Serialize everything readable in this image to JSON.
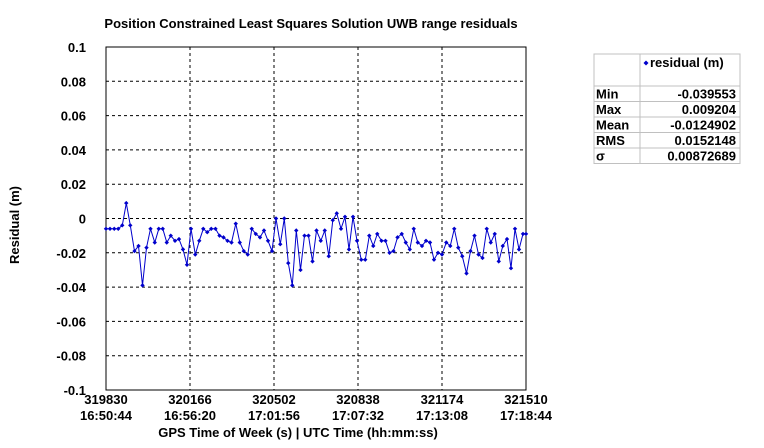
{
  "chart_data": {
    "type": "line",
    "title": "Position Constrained Least Squares Solution UWB range residuals",
    "xlabel": "GPS Time of Week (s) | UTC Time (hh:mm:ss)",
    "ylabel": "Residual (m)",
    "xlim": [
      319830,
      321510
    ],
    "ylim": [
      -0.1,
      0.1
    ],
    "grid": true,
    "legend_position": "right",
    "y_ticks": [
      "0.1",
      "0.08",
      "0.06",
      "0.04",
      "0.02",
      "0",
      "-0.02",
      "-0.04",
      "-0.06",
      "-0.08",
      "-0.1"
    ],
    "x_ticks": [
      {
        "gps": "319830",
        "utc": "16:50:44"
      },
      {
        "gps": "320166",
        "utc": "16:56:20"
      },
      {
        "gps": "320502",
        "utc": "17:01:56"
      },
      {
        "gps": "320838",
        "utc": "17:07:32"
      },
      {
        "gps": "321174",
        "utc": "17:13:08"
      },
      {
        "gps": "321510",
        "utc": "17:18:44"
      }
    ],
    "series": [
      {
        "name": "residual (m)",
        "color": "#0000cc",
        "marker": "diamond",
        "x": [
          319830,
          319846,
          319863,
          319879,
          319895,
          319911,
          319927,
          319944,
          319960,
          319976,
          319992,
          320008,
          320025,
          320041,
          320057,
          320073,
          320089,
          320106,
          320122,
          320138,
          320154,
          320170,
          320187,
          320203,
          320219,
          320235,
          320251,
          320268,
          320284,
          320300,
          320316,
          320332,
          320349,
          320365,
          320381,
          320397,
          320413,
          320429,
          320446,
          320462,
          320478,
          320494,
          320510,
          320527,
          320543,
          320559,
          320575,
          320591,
          320608,
          320624,
          320640,
          320656,
          320672,
          320689,
          320705,
          320721,
          320737,
          320753,
          320770,
          320786,
          320802,
          320818,
          320834,
          320851,
          320867,
          320883,
          320899,
          320915,
          320932,
          320948,
          320964,
          320980,
          320996,
          321013,
          321029,
          321045,
          321061,
          321077,
          321094,
          321110,
          321126,
          321142,
          321158,
          321174,
          321191,
          321207,
          321223,
          321239,
          321255,
          321272,
          321288,
          321304,
          321320,
          321336,
          321353,
          321369,
          321385,
          321401,
          321417,
          321434,
          321450,
          321466,
          321482,
          321498,
          321510
        ],
        "y": [
          -0.006,
          -0.006,
          -0.006,
          -0.006,
          -0.004,
          0.009,
          -0.004,
          -0.019,
          -0.016,
          -0.039,
          -0.017,
          -0.006,
          -0.014,
          -0.006,
          -0.006,
          -0.014,
          -0.01,
          -0.013,
          -0.012,
          -0.018,
          -0.027,
          -0.006,
          -0.021,
          -0.013,
          -0.006,
          -0.008,
          -0.006,
          -0.006,
          -0.01,
          -0.011,
          -0.013,
          -0.014,
          -0.003,
          -0.014,
          -0.019,
          -0.021,
          -0.006,
          -0.009,
          -0.011,
          -0.007,
          -0.013,
          -0.019,
          0.0,
          -0.015,
          0.0,
          -0.026,
          -0.039,
          -0.007,
          -0.03,
          -0.01,
          -0.01,
          -0.025,
          -0.007,
          -0.013,
          -0.007,
          -0.022,
          -0.001,
          0.003,
          -0.006,
          0.001,
          -0.018,
          0.001,
          -0.013,
          -0.024,
          -0.024,
          -0.01,
          -0.016,
          -0.009,
          -0.013,
          -0.013,
          -0.02,
          -0.019,
          -0.011,
          -0.009,
          -0.014,
          -0.018,
          -0.006,
          -0.014,
          -0.016,
          -0.013,
          -0.014,
          -0.024,
          -0.02,
          -0.021,
          -0.014,
          -0.016,
          -0.006,
          -0.017,
          -0.022,
          -0.032,
          -0.019,
          -0.01,
          -0.021,
          -0.023,
          -0.006,
          -0.014,
          -0.009,
          -0.025,
          -0.016,
          -0.012,
          -0.029,
          -0.006,
          -0.018,
          -0.009,
          -0.009
        ]
      }
    ]
  },
  "stats_table": {
    "header": "residual (m)",
    "rows": [
      {
        "label": "Min",
        "value": "-0.039553"
      },
      {
        "label": "Max",
        "value": "0.009204"
      },
      {
        "label": "Mean",
        "value": "-0.0124902"
      },
      {
        "label": "RMS",
        "value": "0.0152148"
      },
      {
        "label": "σ",
        "value": "0.00872689"
      }
    ]
  }
}
